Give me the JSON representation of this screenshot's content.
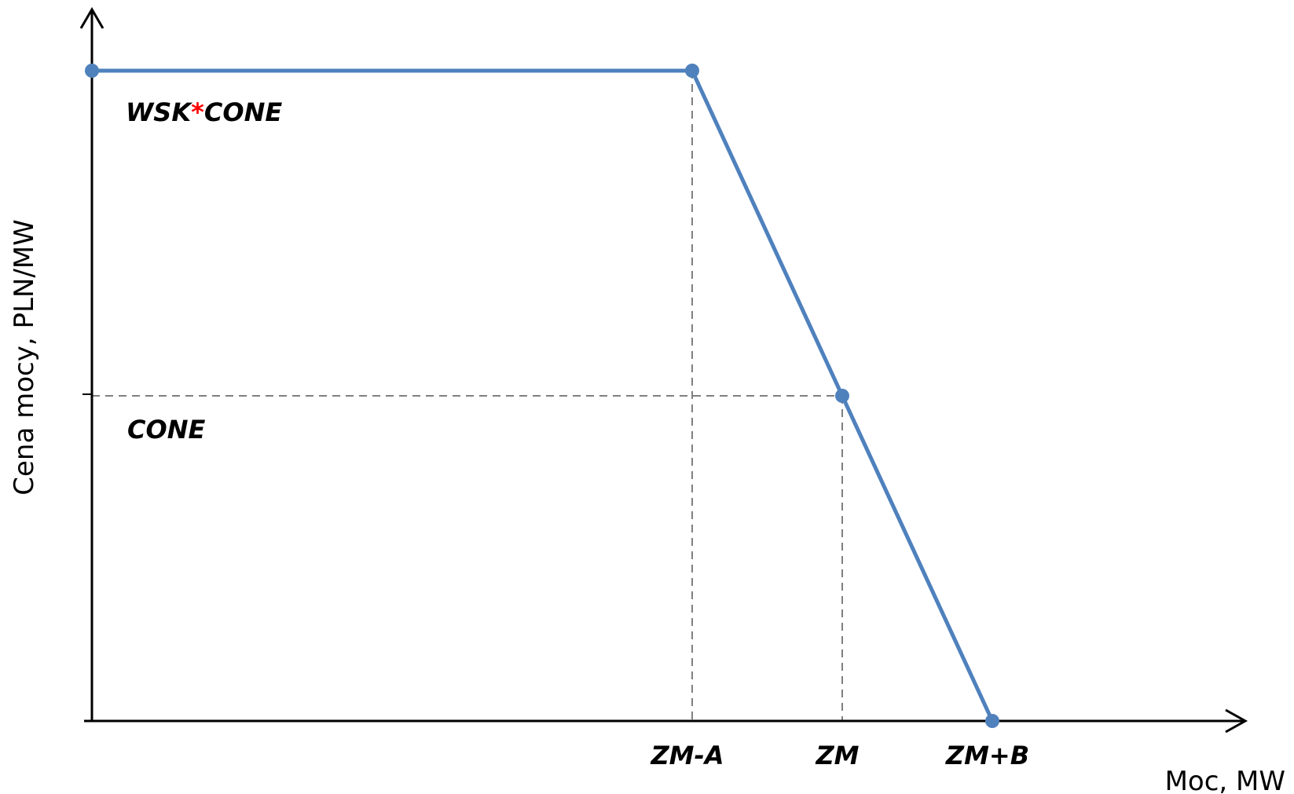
{
  "chart_data": {
    "type": "line",
    "title": "",
    "xlabel": "Moc,  MW",
    "ylabel": "Cena mocy, PLN/MW",
    "x_tick_labels": [
      "ZM-A",
      "ZM",
      "ZM+B"
    ],
    "y_annotations": {
      "cap": {
        "prefix": "WSK",
        "star": "*",
        "suffix": "CONE"
      },
      "cone": "CONE"
    },
    "xlim": [
      0,
      1.3
    ],
    "ylim": [
      0,
      2
    ],
    "x": [
      0,
      0.8,
      1.0,
      1.2
    ],
    "y": [
      2,
      2,
      1,
      0
    ],
    "guides": [
      {
        "x": 0.8,
        "y": 2
      },
      {
        "x": 1.0,
        "y": 1
      }
    ],
    "grid": false,
    "colors": {
      "series": "#4f81bd",
      "guide": "#7f7f7f",
      "star": "#ff0000"
    }
  }
}
